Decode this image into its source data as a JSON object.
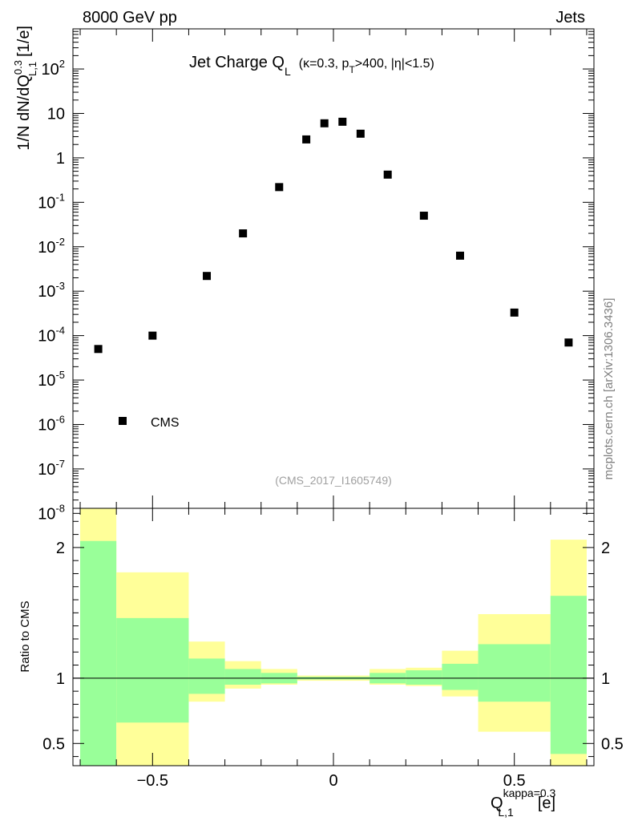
{
  "header": {
    "left": "8000 GeV pp",
    "right": "Jets"
  },
  "side_label": "mcplots.cern.ch [arXiv:1306.3436]",
  "chart_data": [
    {
      "type": "scatter",
      "title": "Jet Charge Q",
      "title_sub": "L",
      "title_extra": "(κ=0.3, p",
      "title_extra_sub": "T",
      "title_extra_tail": ">400, |η|<1.5)",
      "analysis_label": "(CMS_2017_I1605749)",
      "ylabel": "1/N dN/dQ",
      "ylabel_sup": "0.3",
      "ylabel_sub": "L,1",
      "ylabel_unit": "[1/e]",
      "yscale": "log",
      "xlim": [
        -0.72,
        0.72
      ],
      "ylim": [
        1.3e-08,
        800
      ],
      "y_ticks": [
        {
          "exp": -8,
          "label": "10",
          "sup": "-8"
        },
        {
          "exp": -7,
          "label": "10",
          "sup": "-7"
        },
        {
          "exp": -6,
          "label": "10",
          "sup": "-6"
        },
        {
          "exp": -5,
          "label": "10",
          "sup": "-5"
        },
        {
          "exp": -4,
          "label": "10",
          "sup": "-4"
        },
        {
          "exp": -3,
          "label": "10",
          "sup": "-3"
        },
        {
          "exp": -2,
          "label": "10",
          "sup": "-2"
        },
        {
          "exp": -1,
          "label": "10",
          "sup": "-1"
        },
        {
          "exp": 0,
          "label": "1",
          "sup": ""
        },
        {
          "exp": 1,
          "label": "10",
          "sup": ""
        },
        {
          "exp": 2,
          "label": "10",
          "sup": "2"
        }
      ],
      "legend": {
        "label": "CMS",
        "placement": "bottom-left"
      },
      "series": [
        {
          "name": "CMS",
          "x": [
            -0.65,
            -0.5,
            -0.35,
            -0.25,
            -0.15,
            -0.075,
            -0.025,
            0.025,
            0.075,
            0.15,
            0.25,
            0.35,
            0.5,
            0.65
          ],
          "y": [
            5e-05,
            0.0001,
            0.0022,
            0.02,
            0.22,
            2.6,
            6.0,
            6.5,
            3.5,
            0.42,
            0.05,
            0.0063,
            0.00033,
            7e-05
          ]
        }
      ]
    },
    {
      "type": "area",
      "ylabel": "Ratio to CMS",
      "xlabel": "Q",
      "xlabel_sup": "kappa=0.3",
      "xlabel_sub": "L,1",
      "xlabel_unit": "[e]",
      "xlim": [
        -0.72,
        0.72
      ],
      "ylim": [
        0.33,
        2.3
      ],
      "reference_line": 1,
      "x_ticks": [
        {
          "value": -0.5,
          "label": "−0.5"
        },
        {
          "value": 0,
          "label": "0"
        },
        {
          "value": 0.5,
          "label": "0.5"
        }
      ],
      "y_ticks": [
        {
          "value": 0.5,
          "label": "0.5"
        },
        {
          "value": 1,
          "label": "1"
        },
        {
          "value": 2,
          "label": "2"
        }
      ],
      "band_colors": {
        "inner": "#99ff99",
        "outer": "#ffff99"
      },
      "bins": [
        {
          "lo": -0.7,
          "hi": -0.6,
          "inner": [
            0.33,
            2.05
          ],
          "outer": [
            0.33,
            2.3
          ]
        },
        {
          "lo": -0.6,
          "hi": -0.4,
          "inner": [
            0.66,
            1.46
          ],
          "outer": [
            0.33,
            1.81
          ]
        },
        {
          "lo": -0.4,
          "hi": -0.3,
          "inner": [
            0.88,
            1.15
          ],
          "outer": [
            0.82,
            1.28
          ]
        },
        {
          "lo": -0.3,
          "hi": -0.2,
          "inner": [
            0.95,
            1.07
          ],
          "outer": [
            0.92,
            1.13
          ]
        },
        {
          "lo": -0.2,
          "hi": -0.1,
          "inner": [
            0.96,
            1.04
          ],
          "outer": [
            0.95,
            1.07
          ]
        },
        {
          "lo": -0.1,
          "hi": 0.0,
          "inner": [
            0.99,
            1.01
          ],
          "outer": [
            0.98,
            1.02
          ]
        },
        {
          "lo": 0.0,
          "hi": 0.1,
          "inner": [
            0.99,
            1.01
          ],
          "outer": [
            0.98,
            1.02
          ]
        },
        {
          "lo": 0.1,
          "hi": 0.2,
          "inner": [
            0.96,
            1.04
          ],
          "outer": [
            0.95,
            1.07
          ]
        },
        {
          "lo": 0.2,
          "hi": 0.3,
          "inner": [
            0.95,
            1.06
          ],
          "outer": [
            0.94,
            1.08
          ]
        },
        {
          "lo": 0.3,
          "hi": 0.4,
          "inner": [
            0.91,
            1.11
          ],
          "outer": [
            0.86,
            1.21
          ]
        },
        {
          "lo": 0.4,
          "hi": 0.6,
          "inner": [
            0.82,
            1.26
          ],
          "outer": [
            0.59,
            1.49
          ]
        },
        {
          "lo": 0.6,
          "hi": 0.7,
          "inner": [
            0.42,
            1.63
          ],
          "outer": [
            0.33,
            2.06
          ]
        }
      ]
    }
  ]
}
